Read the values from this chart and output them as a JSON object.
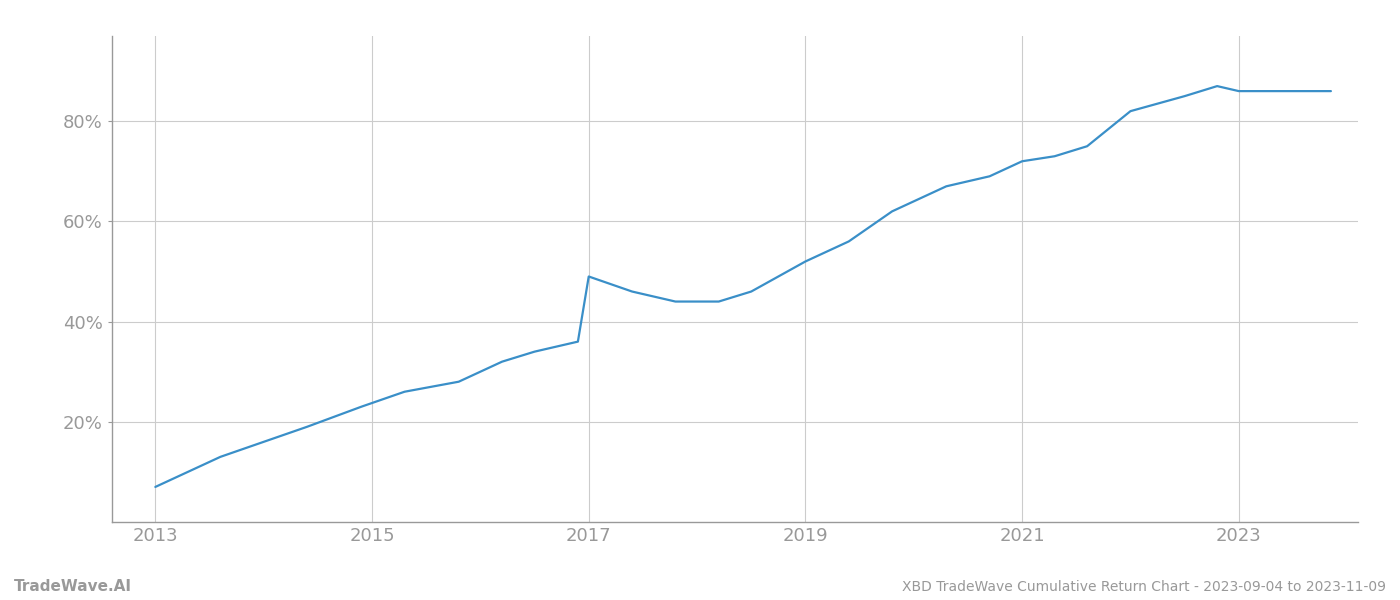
{
  "title": "XBD TradeWave Cumulative Return Chart - 2023-09-04 to 2023-11-09",
  "watermark": "TradeWave.AI",
  "line_color": "#3a8fc8",
  "background_color": "#ffffff",
  "grid_color": "#cccccc",
  "axis_color": "#999999",
  "text_color": "#999999",
  "x_years": [
    2013.0,
    2013.6,
    2014.0,
    2014.4,
    2014.9,
    2015.3,
    2015.8,
    2016.2,
    2016.5,
    2016.9,
    2017.0,
    2017.4,
    2017.8,
    2018.2,
    2018.5,
    2019.0,
    2019.4,
    2019.8,
    2020.3,
    2020.7,
    2021.0,
    2021.3,
    2021.6,
    2022.0,
    2022.5,
    2022.8,
    2023.0,
    2023.85
  ],
  "y_values": [
    7,
    13,
    16,
    19,
    23,
    26,
    28,
    32,
    34,
    36,
    49,
    46,
    44,
    44,
    46,
    52,
    56,
    62,
    67,
    69,
    72,
    73,
    75,
    82,
    85,
    87,
    86,
    86
  ],
  "xticks": [
    2013,
    2015,
    2017,
    2019,
    2021,
    2023
  ],
  "yticks": [
    20,
    40,
    60,
    80
  ],
  "ylim": [
    0,
    97
  ],
  "xlim": [
    2012.6,
    2024.1
  ],
  "line_width": 1.6
}
